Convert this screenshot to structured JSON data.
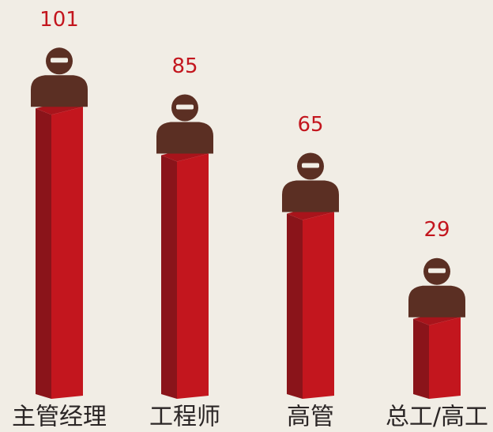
{
  "chart_data": {
    "type": "bar",
    "categories": [
      "主管经理",
      "工程师",
      "高管",
      "总工/高工"
    ],
    "values": [
      101,
      85,
      65,
      29
    ],
    "color": "#c3161e"
  }
}
